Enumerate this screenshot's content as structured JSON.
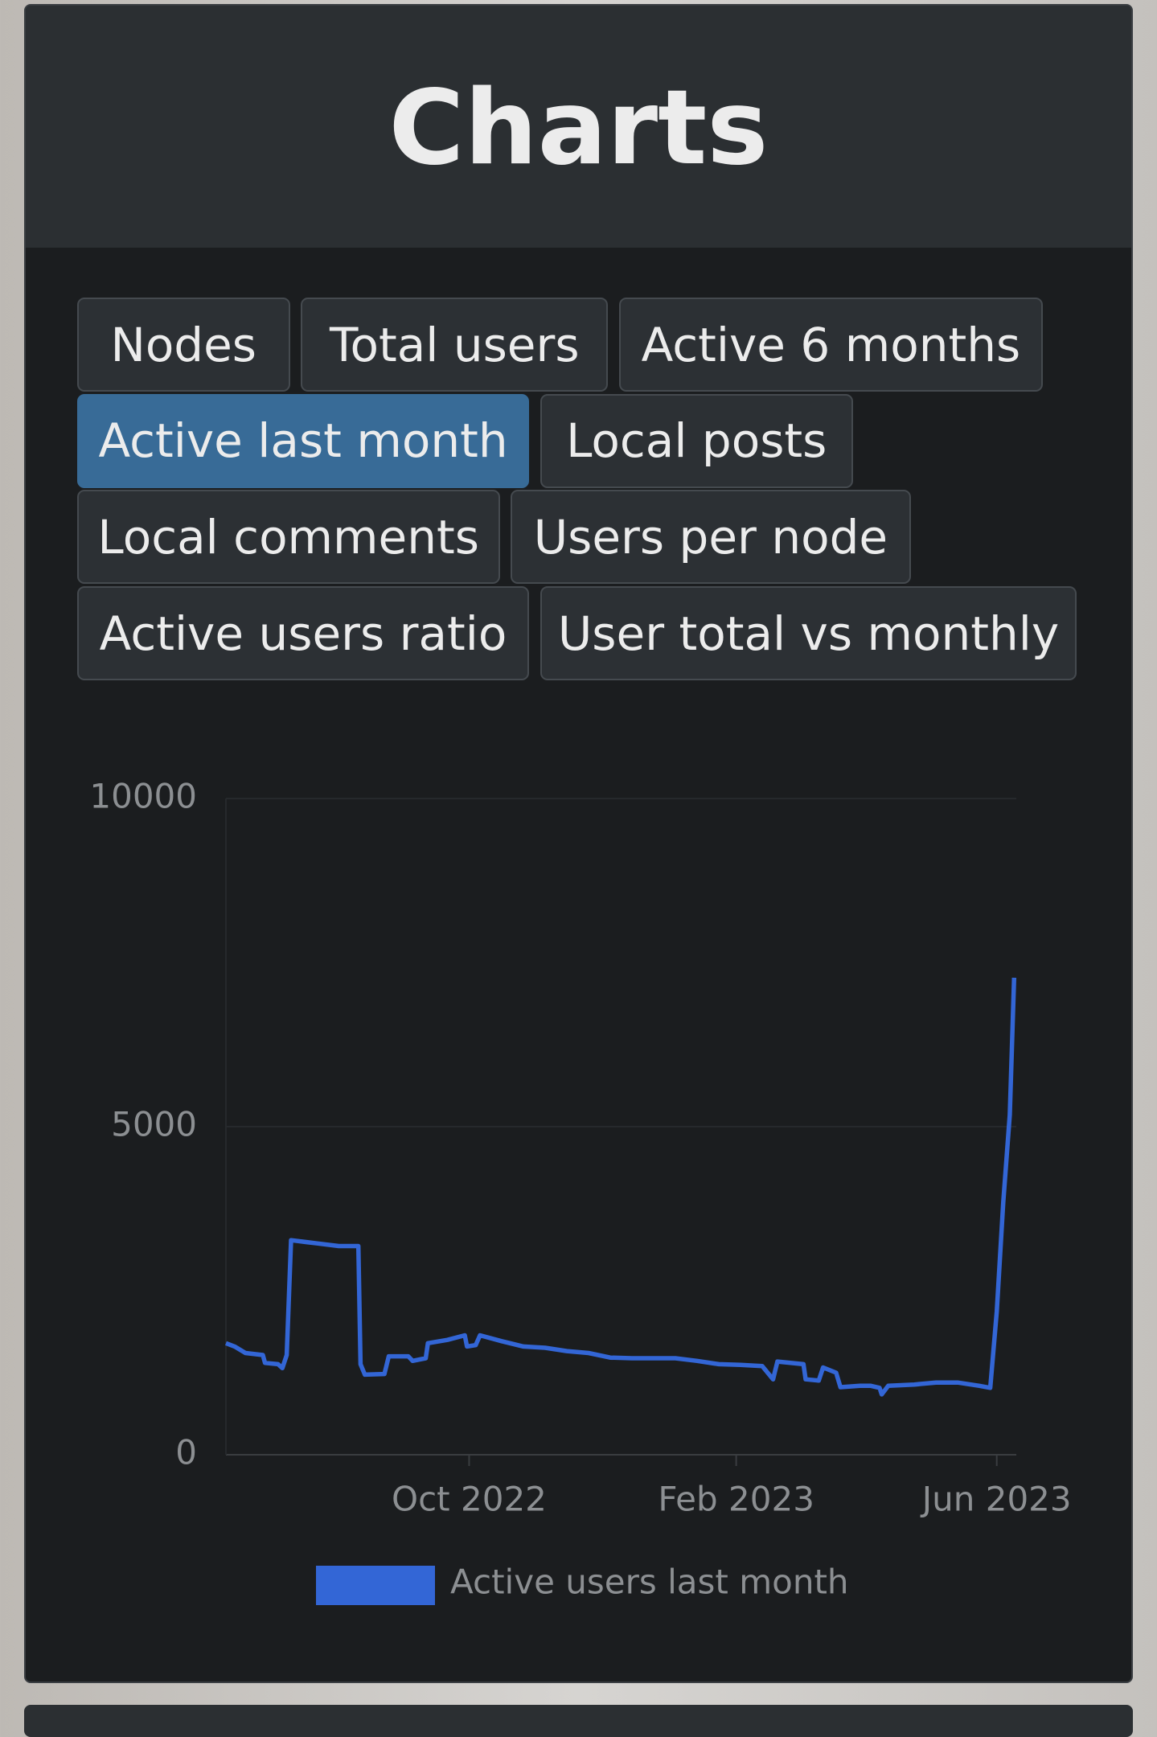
{
  "title": "Charts",
  "buttons": [
    {
      "label": "Nodes",
      "active": false
    },
    {
      "label": "Total users",
      "active": false
    },
    {
      "label": "Active 6 months",
      "active": false
    },
    {
      "label": "Active last month",
      "active": true
    },
    {
      "label": "Local posts",
      "active": false
    },
    {
      "label": "Local comments",
      "active": false
    },
    {
      "label": "Users per node",
      "active": false
    },
    {
      "label": "Active users ratio",
      "active": false
    },
    {
      "label": "User total vs monthly",
      "active": false
    }
  ],
  "chart_data": {
    "type": "line",
    "x": [
      "2022-06-11",
      "2022-06-15",
      "2022-06-20",
      "2022-06-28",
      "2022-06-29",
      "2022-07-05",
      "2022-07-07",
      "2022-07-09",
      "2022-07-11",
      "2022-07-23",
      "2022-08-02",
      "2022-08-11",
      "2022-08-12",
      "2022-08-14",
      "2022-08-23",
      "2022-08-25",
      "2022-09-03",
      "2022-09-05",
      "2022-09-11",
      "2022-09-12",
      "2022-09-21",
      "2022-09-29",
      "2022-09-30",
      "2022-10-04",
      "2022-10-06",
      "2022-10-16",
      "2022-10-26",
      "2022-11-05",
      "2022-11-15",
      "2022-11-25",
      "2022-12-05",
      "2022-12-15",
      "2022-12-25",
      "2023-01-04",
      "2023-01-14",
      "2023-01-24",
      "2023-02-03",
      "2023-02-13",
      "2023-02-18",
      "2023-02-20",
      "2023-03-04",
      "2023-03-05",
      "2023-03-11",
      "2023-03-13",
      "2023-03-19",
      "2023-03-21",
      "2023-03-30",
      "2023-04-04",
      "2023-04-08",
      "2023-04-09",
      "2023-04-12",
      "2023-04-24",
      "2023-05-04",
      "2023-05-14",
      "2023-05-24",
      "2023-05-29",
      "2023-06-01",
      "2023-06-04",
      "2023-06-07",
      "2023-06-09"
    ],
    "series": [
      {
        "name": "Active users last month",
        "color": "#3366d6",
        "values": [
          1700,
          1650,
          1550,
          1520,
          1400,
          1380,
          1320,
          1520,
          3270,
          3220,
          3180,
          3180,
          1380,
          1220,
          1230,
          1500,
          1500,
          1430,
          1470,
          1700,
          1750,
          1820,
          1650,
          1670,
          1820,
          1730,
          1650,
          1630,
          1580,
          1550,
          1480,
          1470,
          1470,
          1470,
          1430,
          1380,
          1370,
          1350,
          1150,
          1420,
          1380,
          1150,
          1130,
          1330,
          1250,
          1030,
          1050,
          1050,
          1020,
          920,
          1050,
          1070,
          1100,
          1100,
          1050,
          1020,
          2180,
          3850,
          5180,
          7270
        ]
      }
    ],
    "xlim": [
      "2022-06-11",
      "2023-06-10"
    ],
    "xticks": [
      {
        "value": "2022-10-01",
        "label": "Oct 2022"
      },
      {
        "value": "2023-02-01",
        "label": "Feb 2023"
      },
      {
        "value": "2023-06-01",
        "label": "Jun 2023"
      }
    ],
    "ylim": [
      0,
      10000
    ],
    "yticks": [
      0,
      5000,
      10000
    ],
    "grid": true,
    "legend": "bottom"
  }
}
